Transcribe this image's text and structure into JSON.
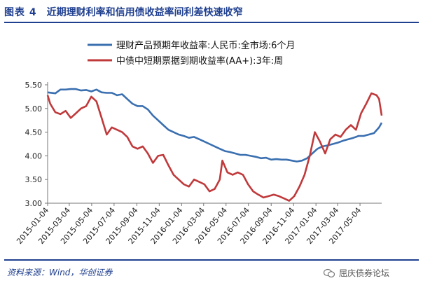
{
  "header": {
    "figure_label": "图表 4",
    "title": "近期理财利率和信用债收益率间利差快速收窄"
  },
  "footer": {
    "source": "资料来源：Wind，华创证券",
    "watermark": "屈庆债券论坛"
  },
  "chart_data": {
    "type": "line",
    "ylim": [
      3.0,
      5.5
    ],
    "yticks": [
      "5.50",
      "5.00",
      "4.50",
      "4.00",
      "3.50",
      "3.00"
    ],
    "x_start": "2015-01-04",
    "x_end": "2017-07-02",
    "xticks": [
      "2015-01-04",
      "2015-03-04",
      "2015-05-04",
      "2015-07-04",
      "2015-09-04",
      "2015-11-04",
      "2016-01-04",
      "2016-03-04",
      "2016-05-04",
      "2016-07-04",
      "2016-09-04",
      "2016-11-04",
      "2017-01-04",
      "2017-03-04",
      "2017-05-04"
    ],
    "grid": false,
    "legend_position": "top",
    "series": [
      {
        "name": "理财产品预期年收益率:人民币:全市场:6个月",
        "color": "#3a6fb0",
        "points": [
          [
            "2015-01-04",
            5.34
          ],
          [
            "2015-01-25",
            5.32
          ],
          [
            "2015-02-08",
            5.4
          ],
          [
            "2015-02-22",
            5.4
          ],
          [
            "2015-03-08",
            5.41
          ],
          [
            "2015-03-22",
            5.41
          ],
          [
            "2015-04-05",
            5.38
          ],
          [
            "2015-04-19",
            5.39
          ],
          [
            "2015-05-03",
            5.36
          ],
          [
            "2015-05-17",
            5.4
          ],
          [
            "2015-05-31",
            5.34
          ],
          [
            "2015-06-14",
            5.33
          ],
          [
            "2015-06-28",
            5.33
          ],
          [
            "2015-07-12",
            5.28
          ],
          [
            "2015-07-26",
            5.3
          ],
          [
            "2015-08-09",
            5.2
          ],
          [
            "2015-08-23",
            5.1
          ],
          [
            "2015-09-06",
            5.05
          ],
          [
            "2015-09-20",
            5.05
          ],
          [
            "2015-10-04",
            4.98
          ],
          [
            "2015-10-18",
            4.85
          ],
          [
            "2015-11-01",
            4.75
          ],
          [
            "2015-11-15",
            4.65
          ],
          [
            "2015-11-29",
            4.55
          ],
          [
            "2015-12-13",
            4.5
          ],
          [
            "2015-12-27",
            4.45
          ],
          [
            "2016-01-10",
            4.42
          ],
          [
            "2016-01-24",
            4.38
          ],
          [
            "2016-02-07",
            4.4
          ],
          [
            "2016-02-21",
            4.35
          ],
          [
            "2016-03-06",
            4.3
          ],
          [
            "2016-03-20",
            4.25
          ],
          [
            "2016-04-03",
            4.2
          ],
          [
            "2016-04-17",
            4.15
          ],
          [
            "2016-05-01",
            4.1
          ],
          [
            "2016-05-15",
            4.08
          ],
          [
            "2016-05-29",
            4.05
          ],
          [
            "2016-06-12",
            4.02
          ],
          [
            "2016-06-26",
            4.02
          ],
          [
            "2016-07-10",
            4.0
          ],
          [
            "2016-07-24",
            3.98
          ],
          [
            "2016-08-07",
            3.95
          ],
          [
            "2016-08-21",
            3.96
          ],
          [
            "2016-09-04",
            3.92
          ],
          [
            "2016-09-18",
            3.93
          ],
          [
            "2016-10-02",
            3.92
          ],
          [
            "2016-10-16",
            3.92
          ],
          [
            "2016-10-30",
            3.9
          ],
          [
            "2016-11-13",
            3.88
          ],
          [
            "2016-11-27",
            3.9
          ],
          [
            "2016-12-11",
            3.95
          ],
          [
            "2016-12-25",
            4.05
          ],
          [
            "2017-01-08",
            4.15
          ],
          [
            "2017-01-22",
            4.2
          ],
          [
            "2017-02-05",
            4.22
          ],
          [
            "2017-02-19",
            4.25
          ],
          [
            "2017-03-05",
            4.28
          ],
          [
            "2017-03-19",
            4.32
          ],
          [
            "2017-04-02",
            4.35
          ],
          [
            "2017-04-16",
            4.38
          ],
          [
            "2017-04-30",
            4.42
          ],
          [
            "2017-05-14",
            4.42
          ],
          [
            "2017-05-28",
            4.45
          ],
          [
            "2017-06-11",
            4.48
          ],
          [
            "2017-06-25",
            4.6
          ],
          [
            "2017-07-02",
            4.7
          ]
        ]
      },
      {
        "name": "中债中短期票据到期收益率(AA+):3年:周",
        "color": "#c0393b",
        "points": [
          [
            "2015-01-04",
            5.28
          ],
          [
            "2015-01-11",
            5.1
          ],
          [
            "2015-01-25",
            4.92
          ],
          [
            "2015-02-08",
            4.88
          ],
          [
            "2015-02-22",
            4.95
          ],
          [
            "2015-03-08",
            4.8
          ],
          [
            "2015-03-22",
            4.9
          ],
          [
            "2015-04-05",
            5.0
          ],
          [
            "2015-04-19",
            5.05
          ],
          [
            "2015-05-03",
            5.25
          ],
          [
            "2015-05-17",
            5.15
          ],
          [
            "2015-05-31",
            4.8
          ],
          [
            "2015-06-14",
            4.45
          ],
          [
            "2015-06-28",
            4.6
          ],
          [
            "2015-07-12",
            4.55
          ],
          [
            "2015-07-26",
            4.5
          ],
          [
            "2015-08-09",
            4.4
          ],
          [
            "2015-08-23",
            4.2
          ],
          [
            "2015-09-06",
            4.15
          ],
          [
            "2015-09-20",
            4.2
          ],
          [
            "2015-10-04",
            4.05
          ],
          [
            "2015-10-18",
            3.85
          ],
          [
            "2015-11-01",
            4.0
          ],
          [
            "2015-11-15",
            4.02
          ],
          [
            "2015-11-29",
            3.8
          ],
          [
            "2015-12-13",
            3.6
          ],
          [
            "2015-12-27",
            3.5
          ],
          [
            "2016-01-10",
            3.4
          ],
          [
            "2016-01-24",
            3.35
          ],
          [
            "2016-02-07",
            3.5
          ],
          [
            "2016-02-21",
            3.45
          ],
          [
            "2016-03-06",
            3.4
          ],
          [
            "2016-03-20",
            3.25
          ],
          [
            "2016-04-03",
            3.3
          ],
          [
            "2016-04-17",
            3.5
          ],
          [
            "2016-04-24",
            3.9
          ],
          [
            "2016-05-08",
            3.65
          ],
          [
            "2016-05-22",
            3.6
          ],
          [
            "2016-06-05",
            3.65
          ],
          [
            "2016-06-19",
            3.6
          ],
          [
            "2016-07-03",
            3.4
          ],
          [
            "2016-07-17",
            3.25
          ],
          [
            "2016-07-31",
            3.18
          ],
          [
            "2016-08-14",
            3.12
          ],
          [
            "2016-08-28",
            3.15
          ],
          [
            "2016-09-11",
            3.18
          ],
          [
            "2016-09-25",
            3.15
          ],
          [
            "2016-10-09",
            3.1
          ],
          [
            "2016-10-23",
            3.05
          ],
          [
            "2016-11-06",
            3.15
          ],
          [
            "2016-11-20",
            3.35
          ],
          [
            "2016-12-04",
            3.6
          ],
          [
            "2016-12-18",
            4.0
          ],
          [
            "2017-01-01",
            4.5
          ],
          [
            "2017-01-15",
            4.3
          ],
          [
            "2017-01-29",
            4.05
          ],
          [
            "2017-02-12",
            4.35
          ],
          [
            "2017-02-26",
            4.45
          ],
          [
            "2017-03-12",
            4.4
          ],
          [
            "2017-03-26",
            4.55
          ],
          [
            "2017-04-09",
            4.65
          ],
          [
            "2017-04-23",
            4.55
          ],
          [
            "2017-05-07",
            4.9
          ],
          [
            "2017-05-21",
            5.1
          ],
          [
            "2017-06-04",
            5.32
          ],
          [
            "2017-06-18",
            5.28
          ],
          [
            "2017-06-25",
            5.2
          ],
          [
            "2017-07-02",
            4.85
          ]
        ]
      }
    ]
  }
}
